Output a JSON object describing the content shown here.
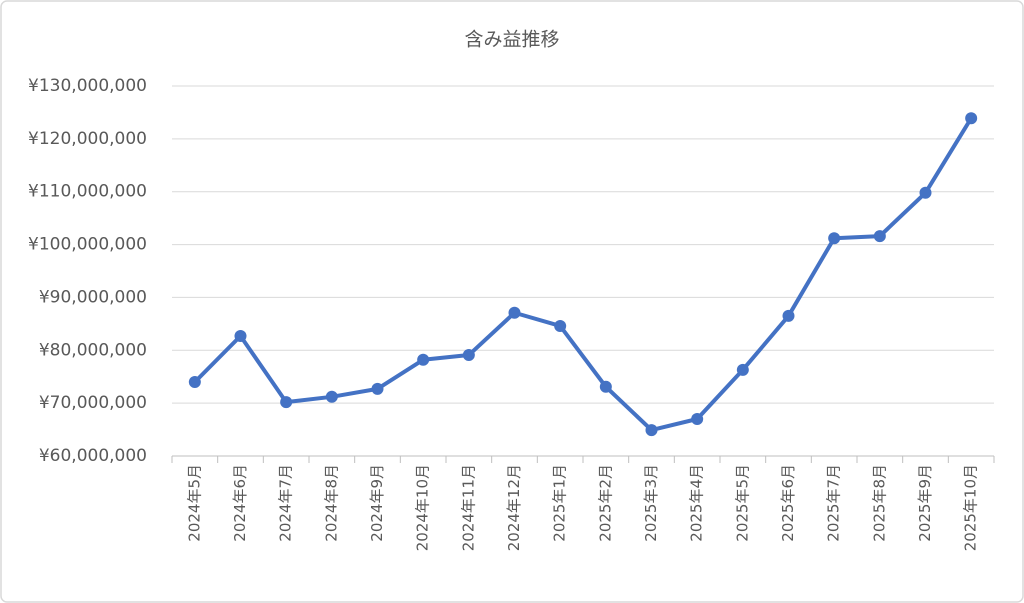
{
  "chart_data": {
    "type": "line",
    "title": "含み益推移",
    "categories": [
      "2024年5月",
      "2024年6月",
      "2024年7月",
      "2024年8月",
      "2024年9月",
      "2024年10月",
      "2024年11月",
      "2024年12月",
      "2025年1月",
      "2025年2月",
      "2025年3月",
      "2025年4月",
      "2025年5月",
      "2025年6月",
      "2025年7月",
      "2025年8月",
      "2025年9月",
      "2025年10月"
    ],
    "series": [
      {
        "name": "含み益",
        "color": "#4472c4",
        "values": [
          74000000,
          82700000,
          70200000,
          71200000,
          72700000,
          78200000,
          79100000,
          87100000,
          84600000,
          73100000,
          64900000,
          67000000,
          76300000,
          86500000,
          101200000,
          101600000,
          109800000,
          123900000
        ]
      }
    ],
    "ylim": [
      60000000,
      130000000
    ],
    "yticks": [
      {
        "value": 60000000,
        "label": "¥60,000,000"
      },
      {
        "value": 70000000,
        "label": "¥70,000,000"
      },
      {
        "value": 80000000,
        "label": "¥80,000,000"
      },
      {
        "value": 90000000,
        "label": "¥90,000,000"
      },
      {
        "value": 100000000,
        "label": "¥100,000,000"
      },
      {
        "value": 110000000,
        "label": "¥110,000,000"
      },
      {
        "value": 120000000,
        "label": "¥120,000,000"
      },
      {
        "value": 130000000,
        "label": "¥130,000,000"
      }
    ],
    "grid": true
  }
}
